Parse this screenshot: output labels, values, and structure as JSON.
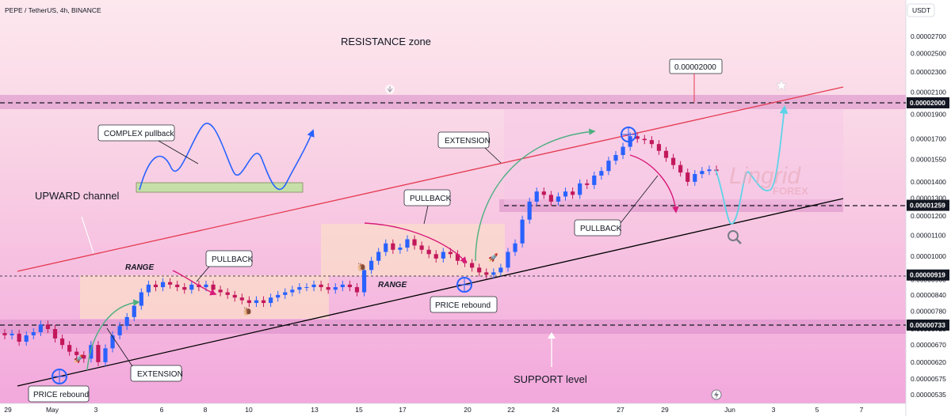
{
  "header": {
    "symbol": "PEPE / TetherUS, 4h, BINANCE",
    "currency": "USDT"
  },
  "price_axis": {
    "ticks": [
      "0.00002700",
      "0.00002500",
      "0.00002300",
      "0.00002100",
      "0.00001900",
      "0.00001700",
      "0.00001550",
      "0.00001400",
      "0.00001300",
      "0.00001200",
      "0.00001100",
      "0.00001000",
      "0.00000900",
      "0.00000840",
      "0.00000780",
      "0.00000720",
      "0.00000670",
      "0.00000620",
      "0.00000575",
      "0.00000535"
    ],
    "highlighted": [
      "0.00002000",
      "0.00001259",
      "0.00000919",
      "0.00000733"
    ]
  },
  "time_axis": {
    "ticks": [
      "29",
      "May",
      "3",
      "6",
      "8",
      "10",
      "13",
      "15",
      "17",
      "20",
      "22",
      "24",
      "27",
      "29",
      "Jun",
      "3",
      "5",
      "7"
    ]
  },
  "annotations": {
    "resistance_zone": "RESISTANCE zone",
    "support_level": "SUPPORT level",
    "upward_channel": "UPWARD channel",
    "complex_pullback": "COMPLEX pullback",
    "extension_top": "EXTENSION",
    "extension_bottom": "EXTENSION",
    "pullback_top": "PULLBACK",
    "pullback_left": "PULLBACK",
    "pullback_right": "PULLBACK",
    "range_left": "RANGE",
    "range_mid": "RANGE",
    "price_rebound_left": "PRICE rebound",
    "price_rebound_mid": "PRICE rebound",
    "target_price": "0.00002000"
  },
  "watermark": {
    "brand": "Lingrid",
    "sub": "FOREX"
  },
  "colors": {
    "up_candle": "#2962ff",
    "down_candle": "#c2185b",
    "channel_upper": "#e53950",
    "channel_lower": "#000000",
    "zone_fill": "#e8a3d6",
    "range_box": "#f8d9cc",
    "forecast_path": "#5dd3e8",
    "arrow_green": "#4caf80",
    "arrow_pink": "#d81b7a",
    "label_dark": "#131722"
  },
  "chart_data": {
    "type": "candlestick",
    "symbol": "PEPE / TetherUS",
    "timeframe": "4h",
    "exchange": "BINANCE",
    "currency": "USDT",
    "key_levels": [
      2e-05,
      1.259e-05,
      9.19e-06,
      7.33e-06
    ],
    "price_axis_log": true,
    "candle_closes": [
      7e-06,
      7.05e-06,
      6.8e-06,
      7e-06,
      7.1e-06,
      7.35e-06,
      7.2e-06,
      6.9e-06,
      6.7e-06,
      6.5e-06,
      6.4e-06,
      6.3e-06,
      6.7e-06,
      6.2e-06,
      6.6e-06,
      7e-06,
      7.3e-06,
      7.6e-06,
      8e-06,
      8.5e-06,
      8.8e-06,
      8.7e-06,
      8.9e-06,
      8.8e-06,
      8.7e-06,
      8.6e-06,
      8.8e-06,
      8.7e-06,
      8.8e-06,
      8.6e-06,
      8.5e-06,
      8.4e-06,
      8.3e-06,
      8.2e-06,
      8.1e-06,
      8.2e-06,
      8.1e-06,
      8.3e-06,
      8.4e-06,
      8.5e-06,
      8.6e-06,
      8.7e-06,
      8.7e-06,
      8.8e-06,
      8.7e-06,
      8.6e-06,
      8.7e-06,
      8.8e-06,
      8.7e-06,
      8.5e-06,
      9.4e-06,
      9.8e-06,
      1.02e-05,
      1.06e-05,
      1.03e-05,
      1.04e-05,
      1.08e-05,
      1.05e-05,
      1.03e-05,
      1.01e-05,
      9.9e-06,
      1.02e-05,
      1.01e-05,
      9.8e-06,
      9.7e-06,
      9.5e-06,
      9.3e-06,
      9.2e-06,
      9.3e-06,
      9.5e-06,
      1.02e-05,
      1.06e-05,
      1.18e-05,
      1.28e-05,
      1.34e-05,
      1.32e-05,
      1.28e-05,
      1.31e-05,
      1.34e-05,
      1.32e-05,
      1.39e-05,
      1.38e-05,
      1.44e-05,
      1.47e-05,
      1.54e-05,
      1.58e-05,
      1.64e-05,
      1.72e-05,
      1.7e-05,
      1.69e-05,
      1.66e-05,
      1.61e-05,
      1.56e-05,
      1.51e-05,
      1.46e-05,
      1.4e-05,
      1.45e-05,
      1.47e-05,
      1.48e-05,
      1.47e-05
    ],
    "forecast": "price moves up from support trendline toward 0.00002000 resistance"
  }
}
